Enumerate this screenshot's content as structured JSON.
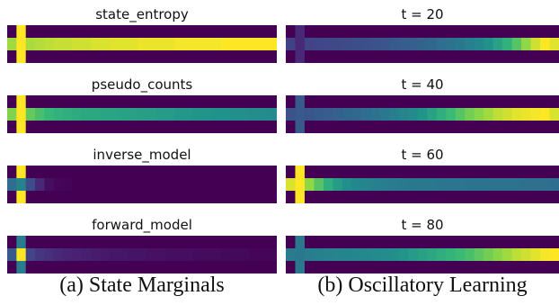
{
  "chart_data": [
    {
      "type": "heatmap",
      "colormap": "viridis",
      "grid": {
        "rows": 3,
        "cols": 29
      },
      "title": "state_entropy",
      "column": "a",
      "cross_col": 1,
      "cross_value": 1.0,
      "row_values": [
        0.9,
        0.91,
        0.92,
        0.93,
        0.94,
        0.94,
        0.95,
        0.95,
        0.96,
        0.96,
        0.97,
        0.97,
        0.97,
        0.98,
        0.98,
        0.98,
        0.98,
        0.99,
        0.99,
        0.99,
        0.99,
        0.99,
        1.0,
        1.0,
        1.0,
        1.0,
        1.0,
        1.0
      ]
    },
    {
      "type": "heatmap",
      "colormap": "viridis",
      "grid": {
        "rows": 3,
        "cols": 29
      },
      "title": "t = 20",
      "column": "b",
      "cross_col": 1,
      "cross_value": 0.15,
      "row_values": [
        0.24,
        0.25,
        0.26,
        0.27,
        0.28,
        0.29,
        0.3,
        0.31,
        0.32,
        0.33,
        0.35,
        0.37,
        0.38,
        0.4,
        0.42,
        0.45,
        0.47,
        0.5,
        0.54,
        0.58,
        0.63,
        0.68,
        0.73,
        0.8,
        0.88,
        0.95,
        1.0,
        0.97
      ]
    },
    {
      "type": "heatmap",
      "colormap": "viridis",
      "grid": {
        "rows": 3,
        "cols": 29
      },
      "title": "pseudo_counts",
      "column": "a",
      "cross_col": 1,
      "cross_value": 1.0,
      "row_values": [
        0.86,
        0.82,
        0.78,
        0.75,
        0.73,
        0.72,
        0.71,
        0.7,
        0.7,
        0.69,
        0.69,
        0.68,
        0.68,
        0.67,
        0.67,
        0.66,
        0.66,
        0.65,
        0.65,
        0.64,
        0.64,
        0.63,
        0.63,
        0.62,
        0.62,
        0.61,
        0.61,
        0.6
      ]
    },
    {
      "type": "heatmap",
      "colormap": "viridis",
      "grid": {
        "rows": 3,
        "cols": 29
      },
      "title": "t = 40",
      "column": "b",
      "cross_col": 1,
      "cross_value": 0.35,
      "row_values": [
        0.32,
        0.33,
        0.35,
        0.37,
        0.39,
        0.41,
        0.43,
        0.45,
        0.47,
        0.5,
        0.53,
        0.56,
        0.6,
        0.64,
        0.68,
        0.72,
        0.76,
        0.8,
        0.84,
        0.87,
        0.9,
        0.93,
        0.95,
        0.97,
        0.98,
        0.99,
        1.0,
        0.96
      ]
    },
    {
      "type": "heatmap",
      "colormap": "viridis",
      "grid": {
        "rows": 3,
        "cols": 29
      },
      "title": "inverse_model",
      "column": "a",
      "cross_col": 1,
      "cross_value": 1.0,
      "row_values": [
        0.45,
        0.3,
        0.15,
        0.05,
        0.02,
        0.01,
        0.0,
        0.0,
        0.0,
        0.0,
        0.0,
        0.0,
        0.0,
        0.0,
        0.0,
        0.0,
        0.0,
        0.0,
        0.0,
        0.0,
        0.0,
        0.0,
        0.0,
        0.0,
        0.0,
        0.0,
        0.0,
        0.0
      ],
      "cross_center_value": 0.55
    },
    {
      "type": "heatmap",
      "colormap": "viridis",
      "grid": {
        "rows": 3,
        "cols": 29
      },
      "title": "t = 60",
      "column": "b",
      "cross_col": 1,
      "cross_value": 1.0,
      "row_values": [
        0.96,
        0.88,
        0.8,
        0.72,
        0.66,
        0.62,
        0.58,
        0.56,
        0.54,
        0.53,
        0.52,
        0.51,
        0.5,
        0.5,
        0.5,
        0.49,
        0.49,
        0.49,
        0.48,
        0.48,
        0.48,
        0.47,
        0.47,
        0.47,
        0.46,
        0.46,
        0.46,
        0.45
      ]
    },
    {
      "type": "heatmap",
      "colormap": "viridis",
      "grid": {
        "rows": 3,
        "cols": 29
      },
      "title": "forward_model",
      "column": "a",
      "cross_col": 1,
      "cross_value": 0.52,
      "row_values": [
        0.35,
        0.25,
        0.2,
        0.17,
        0.15,
        0.13,
        0.12,
        0.11,
        0.1,
        0.09,
        0.08,
        0.08,
        0.07,
        0.07,
        0.06,
        0.06,
        0.05,
        0.05,
        0.05,
        0.04,
        0.04,
        0.04,
        0.03,
        0.03,
        0.03,
        0.02,
        0.02,
        0.02
      ],
      "cross_center_value": 1.0
    },
    {
      "type": "heatmap",
      "colormap": "viridis",
      "grid": {
        "rows": 3,
        "cols": 29
      },
      "title": "t = 80",
      "column": "b",
      "cross_col": 1,
      "cross_value": 0.5,
      "row_values": [
        0.52,
        0.53,
        0.54,
        0.55,
        0.56,
        0.57,
        0.58,
        0.59,
        0.6,
        0.61,
        0.62,
        0.64,
        0.66,
        0.68,
        0.7,
        0.72,
        0.74,
        0.76,
        0.78,
        0.81,
        0.84,
        0.87,
        0.9,
        0.93,
        0.95,
        0.97,
        0.99,
        1.0
      ]
    }
  ],
  "captions": {
    "left": "(a) State Marginals",
    "right": "(b) Oscillatory Learning"
  }
}
